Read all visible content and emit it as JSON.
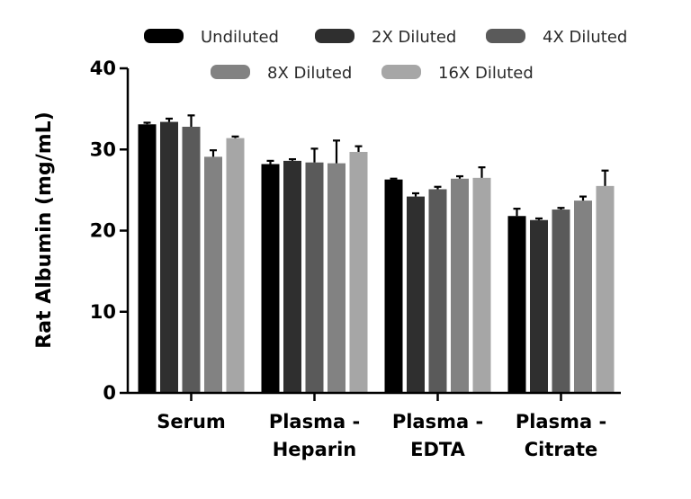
{
  "chart_data": {
    "type": "bar",
    "title": "",
    "xlabel": "",
    "ylabel": "Rat Albumin (mg/mL)",
    "ylim": [
      0,
      40
    ],
    "yticks": [
      0,
      10,
      20,
      30,
      40
    ],
    "categories": [
      [
        "Serum"
      ],
      [
        "Plasma -",
        "Heparin"
      ],
      [
        "Plasma -",
        "EDTA"
      ],
      [
        "Plasma -",
        "Citrate"
      ]
    ],
    "series": [
      {
        "name": "Undiluted",
        "color": "#000000",
        "values": [
          33.1,
          28.2,
          26.3,
          21.8
        ],
        "errors": [
          0.2,
          0.4,
          0.1,
          0.9
        ]
      },
      {
        "name": "2X Diluted",
        "color": "#2f2f2f",
        "values": [
          33.4,
          28.6,
          24.2,
          21.3
        ],
        "errors": [
          0.4,
          0.2,
          0.4,
          0.2
        ]
      },
      {
        "name": "4X Diluted",
        "color": "#5a5a5a",
        "values": [
          32.8,
          28.4,
          25.1,
          22.6
        ],
        "errors": [
          1.4,
          1.7,
          0.3,
          0.2
        ]
      },
      {
        "name": "8X Diluted",
        "color": "#828282",
        "values": [
          29.1,
          28.3,
          26.4,
          23.7
        ],
        "errors": [
          0.8,
          2.8,
          0.3,
          0.5
        ]
      },
      {
        "name": "16X Diluted",
        "color": "#a6a6a6",
        "values": [
          31.4,
          29.7,
          26.5,
          25.5
        ],
        "errors": [
          0.2,
          0.7,
          1.3,
          1.9
        ]
      }
    ],
    "grid": false,
    "legend_position": "top"
  }
}
